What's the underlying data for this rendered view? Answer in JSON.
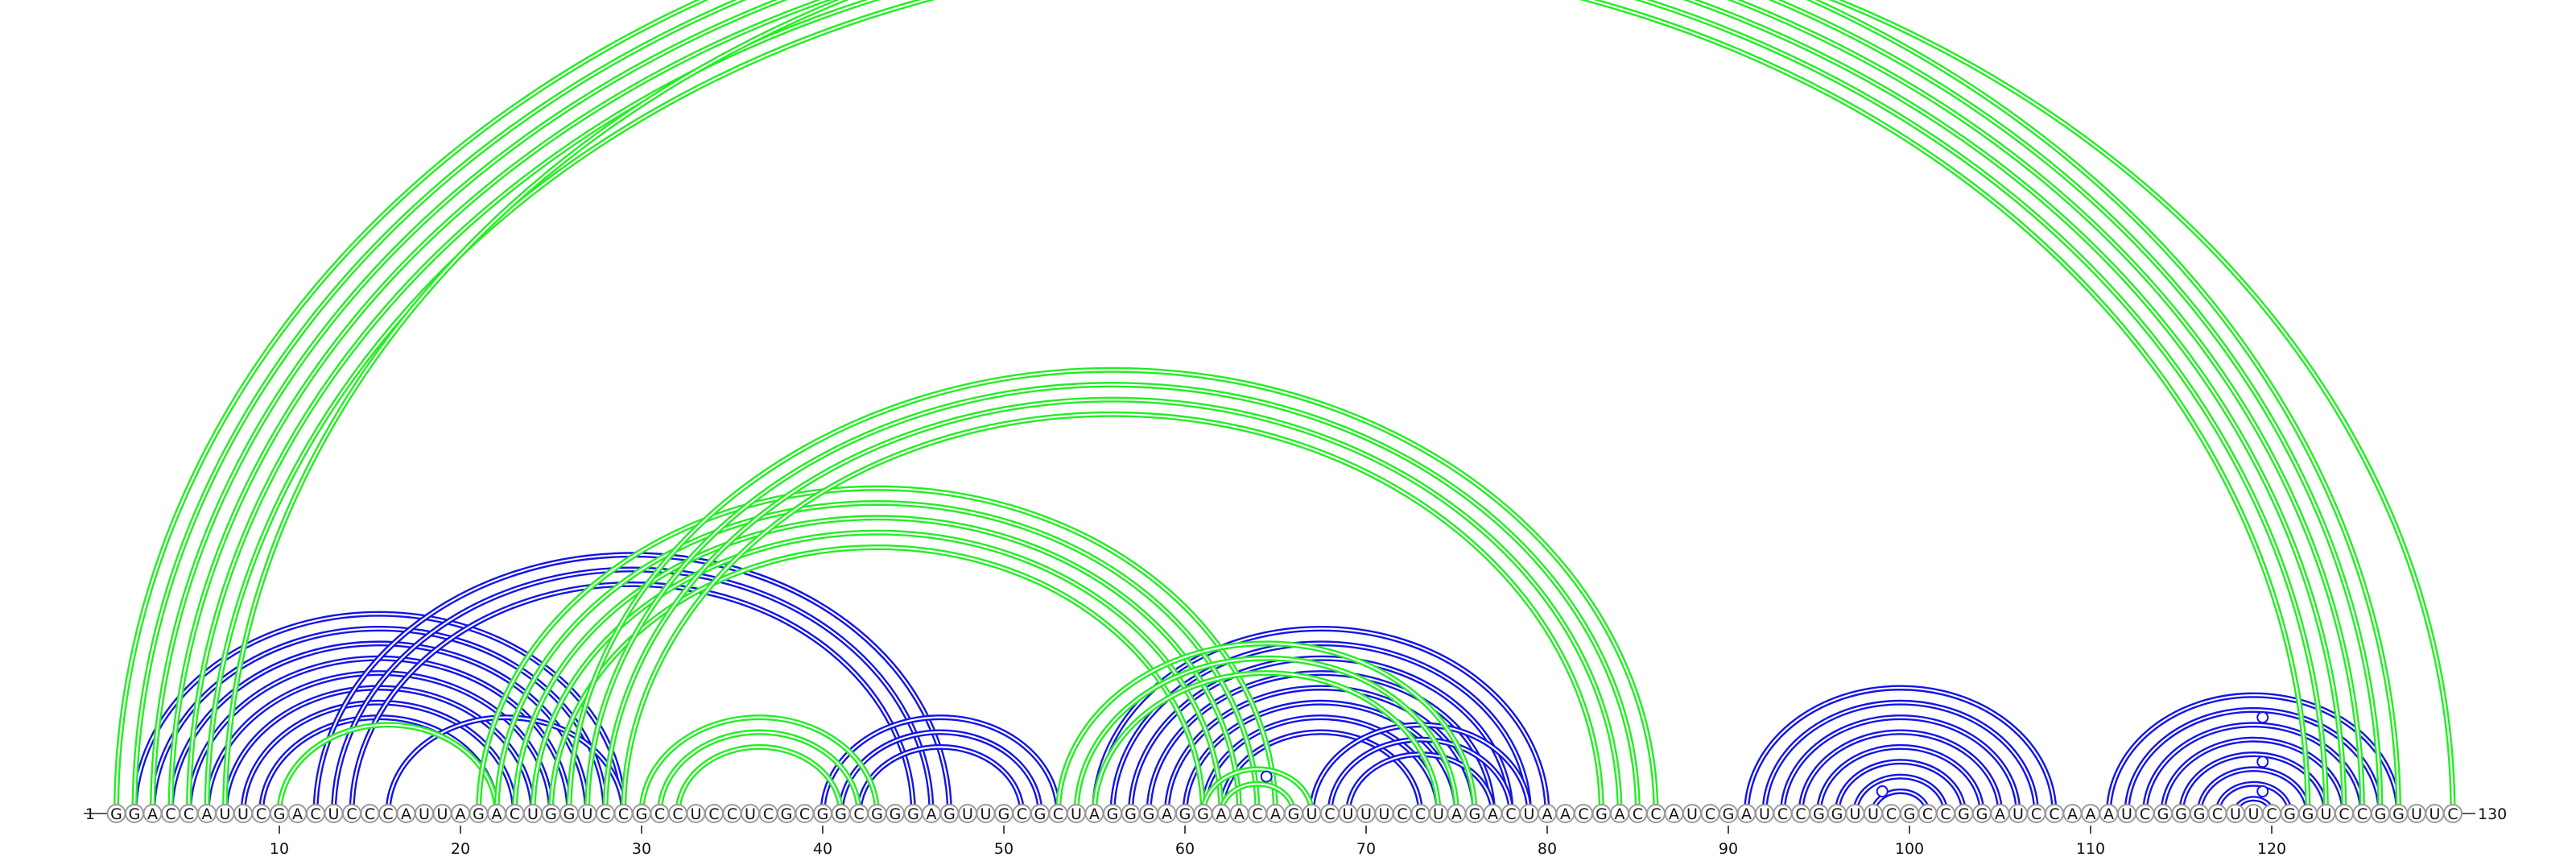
{
  "sequence": "GGACCAUUCGACUCCCAUUAGACUGGUCCGCCUCCUCGCGGCGGGAGUUGCGCUAGGGAGGAACAGUCUUUCCUAGACUAACGACCAUCGAUCCGGUUCGCCGGAUCCAAAUCGGGCUUCGGUCCGGUUC",
  "start_label": "1",
  "end_label": "130",
  "ticks": [
    10,
    20,
    30,
    40,
    50,
    60,
    70,
    80,
    90,
    100,
    110,
    120
  ],
  "colors": {
    "blue": "#1414e6",
    "green": "#22ee22"
  },
  "chart_data": {
    "type": "arc-diagram",
    "sequence_length": 130,
    "series": [
      {
        "color": "blue",
        "pairs": [
          [
            2,
            29
          ],
          [
            3,
            28
          ],
          [
            4,
            27
          ],
          [
            5,
            26
          ],
          [
            6,
            25
          ],
          [
            7,
            24
          ],
          [
            8,
            23
          ],
          [
            9,
            22
          ],
          [
            12,
            47
          ],
          [
            13,
            46
          ],
          [
            14,
            45
          ],
          [
            16,
            29
          ],
          [
            40,
            53
          ],
          [
            41,
            52
          ],
          [
            42,
            51
          ],
          [
            55,
            80
          ],
          [
            56,
            79
          ],
          [
            57,
            78
          ],
          [
            58,
            77
          ],
          [
            59,
            76
          ],
          [
            60,
            75
          ],
          [
            61,
            74
          ],
          [
            62,
            73
          ],
          [
            67,
            79
          ],
          [
            68,
            78
          ],
          [
            69,
            77
          ],
          [
            91,
            108
          ],
          [
            92,
            107
          ],
          [
            93,
            106
          ],
          [
            94,
            105
          ],
          [
            95,
            104
          ],
          [
            96,
            103
          ],
          [
            97,
            102
          ],
          [
            98,
            101
          ],
          [
            111,
            127
          ],
          [
            112,
            126
          ],
          [
            113,
            125
          ],
          [
            114,
            124
          ],
          [
            115,
            123
          ],
          [
            116,
            122
          ],
          [
            117,
            121
          ],
          [
            118,
            120
          ]
        ]
      },
      {
        "color": "green",
        "pairs": [
          [
            1,
            127
          ],
          [
            2,
            126
          ],
          [
            3,
            125
          ],
          [
            4,
            124
          ],
          [
            5,
            123
          ],
          [
            6,
            122
          ],
          [
            7,
            130
          ],
          [
            10,
            22
          ],
          [
            21,
            65
          ],
          [
            22,
            64
          ],
          [
            23,
            63
          ],
          [
            24,
            62
          ],
          [
            25,
            61
          ],
          [
            26,
            86
          ],
          [
            27,
            85
          ],
          [
            28,
            84
          ],
          [
            29,
            83
          ],
          [
            30,
            43
          ],
          [
            31,
            42
          ],
          [
            32,
            41
          ],
          [
            53,
            76
          ],
          [
            54,
            75
          ],
          [
            55,
            74
          ],
          [
            61,
            67
          ],
          [
            62,
            66
          ]
        ]
      }
    ],
    "markers": [
      {
        "color": "green",
        "pair": [
          1,
          130
        ]
      },
      {
        "color": "blue",
        "pair": [
          62,
          67
        ]
      },
      {
        "color": "blue",
        "pair": [
          97,
          100
        ]
      },
      {
        "color": "blue",
        "pair": [
          113,
          126
        ]
      },
      {
        "color": "blue",
        "pair": [
          116,
          123
        ]
      },
      {
        "color": "blue",
        "pair": [
          118,
          121
        ]
      }
    ]
  }
}
